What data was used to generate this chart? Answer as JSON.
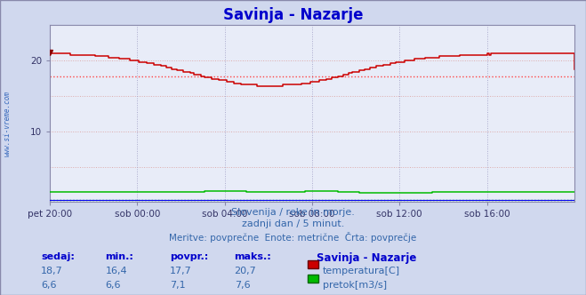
{
  "title": "Savinja - Nazarje",
  "title_color": "#0000cc",
  "title_fontsize": 12,
  "bg_color": "#d0d8ee",
  "plot_bg_color": "#e8ecf8",
  "x_min": 0,
  "x_max": 288,
  "y_min": 0,
  "y_max": 25,
  "ytick_positions": [
    10,
    20
  ],
  "ytick_labels": [
    "10",
    "20"
  ],
  "xtick_positions": [
    0,
    48,
    96,
    144,
    192,
    240
  ],
  "xtick_labels": [
    "pet 20:00",
    "sob 00:00",
    "sob 04:00",
    "sob 08:00",
    "sob 12:00",
    "sob 16:00"
  ],
  "temp_avg": 17.7,
  "temp_color": "#cc0000",
  "temp_avg_color": "#ff5555",
  "flow_avg": 1.42,
  "flow_color": "#00bb00",
  "flow_avg_color": "#00bb00",
  "height_color": "#0000ee",
  "grid_h_color": "#ddaaaa",
  "grid_v_color": "#aaaacc",
  "watermark": "www.si-vreme.com",
  "subtitle1": "Slovenija / reke in morje.",
  "subtitle2": "zadnji dan / 5 minut.",
  "subtitle3": "Meritve: povprečne  Enote: metrične  Črta: povprečje",
  "subtitle_color": "#3366aa",
  "legend_title": "Savinja - Nazarje",
  "legend_color": "#0000cc",
  "table_headers": [
    "sedaj:",
    "min.:",
    "povpr.:",
    "maks.:"
  ],
  "table_header_color": "#0000cc",
  "temp_row": [
    "18,7",
    "16,4",
    "17,7",
    "20,7"
  ],
  "flow_row": [
    "6,6",
    "6,6",
    "7,1",
    "7,6"
  ],
  "table_value_color": "#3366aa",
  "temp_label": "temperatura[C]",
  "flow_label": "pretok[m3/s]"
}
